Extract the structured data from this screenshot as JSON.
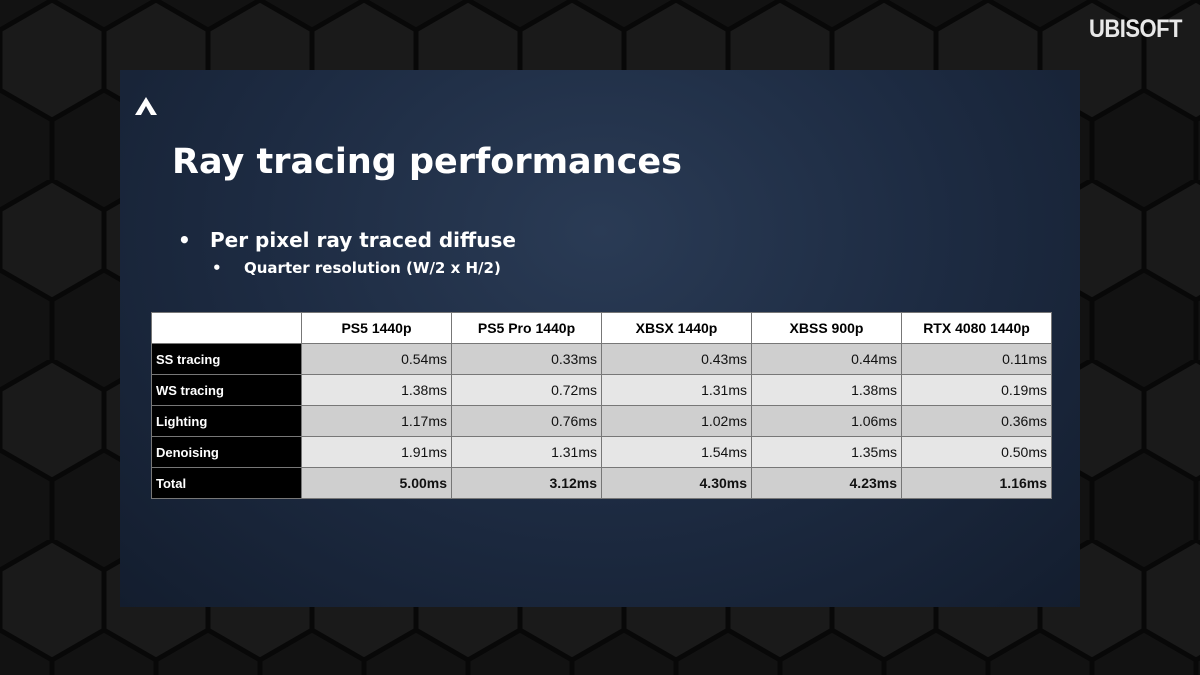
{
  "brand": "UBISOFT",
  "slide": {
    "title": "Ray tracing performances",
    "bullets": [
      {
        "text": "Per pixel ray traced diffuse",
        "sub": [
          "Quarter resolution (W/2 x H/2)"
        ]
      }
    ]
  },
  "table": {
    "columns": [
      "PS5 1440p",
      "PS5 Pro 1440p",
      "XBSX 1440p",
      "XBSS 900p",
      "RTX 4080 1440p"
    ],
    "rows": [
      {
        "label": "SS tracing",
        "cells": [
          "0.54ms",
          "0.33ms",
          "0.43ms",
          "0.44ms",
          "0.11ms"
        ]
      },
      {
        "label": "WS tracing",
        "cells": [
          "1.38ms",
          "0.72ms",
          "1.31ms",
          "1.38ms",
          "0.19ms"
        ]
      },
      {
        "label": "Lighting",
        "cells": [
          "1.17ms",
          "0.76ms",
          "1.02ms",
          "1.06ms",
          "0.36ms"
        ]
      },
      {
        "label": "Denoising",
        "cells": [
          "1.91ms",
          "1.31ms",
          "1.54ms",
          "1.35ms",
          "0.50ms"
        ]
      },
      {
        "label": "Total",
        "cells": [
          "5.00ms",
          "3.12ms",
          "4.30ms",
          "4.23ms",
          "1.16ms"
        ]
      }
    ]
  }
}
